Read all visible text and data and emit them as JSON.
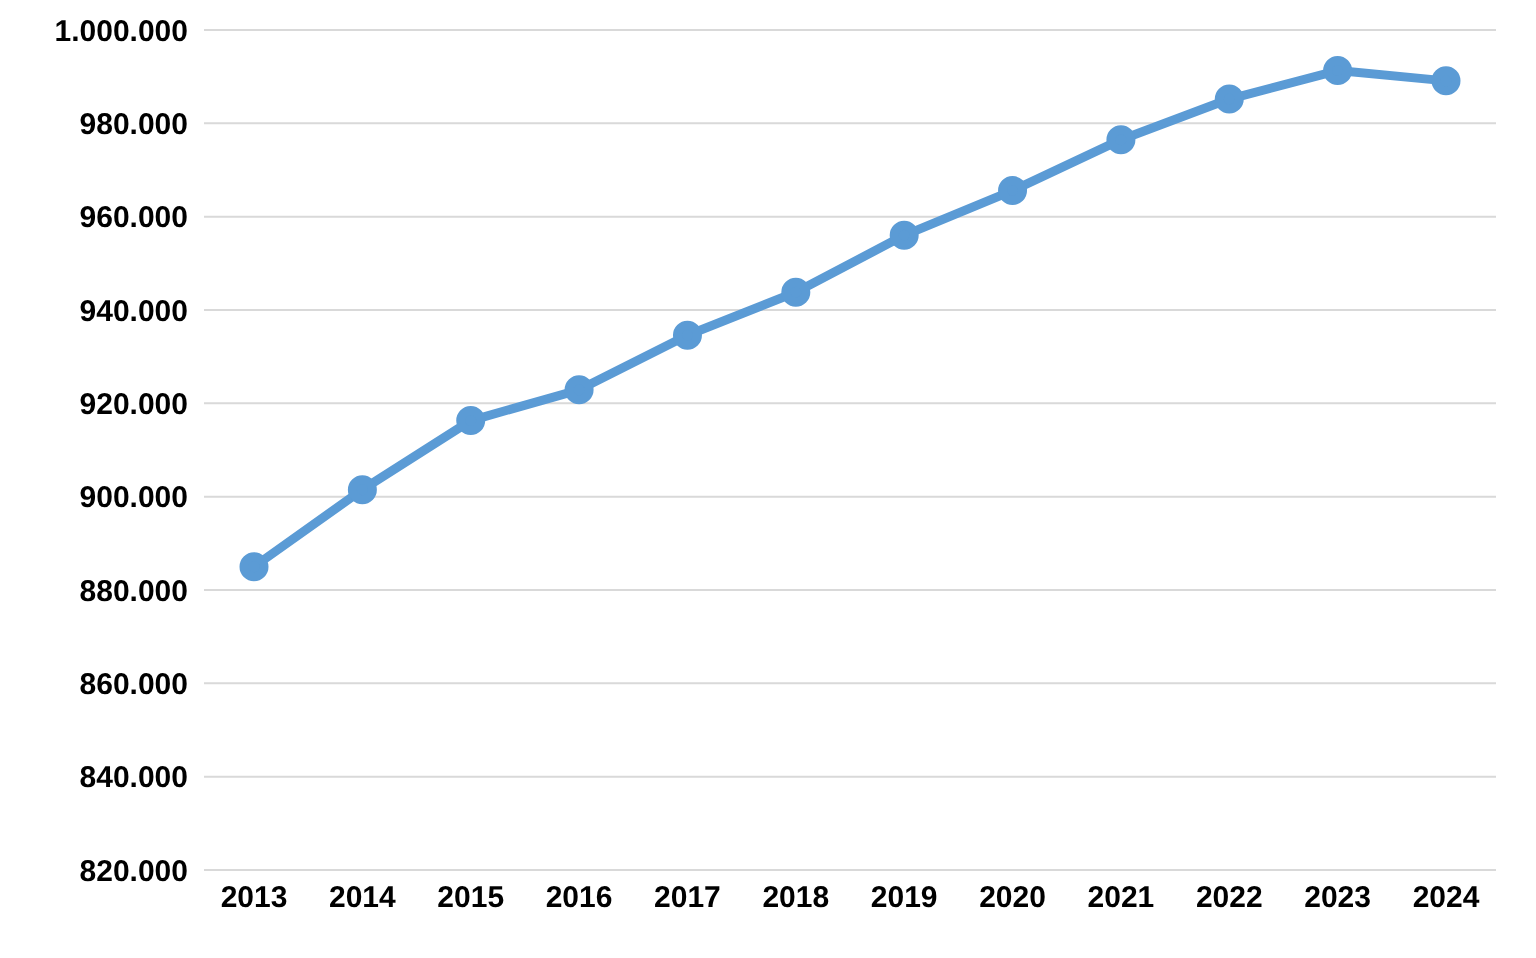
{
  "chart_data": {
    "type": "line",
    "categories": [
      "2013",
      "2014",
      "2015",
      "2016",
      "2017",
      "2018",
      "2019",
      "2020",
      "2021",
      "2022",
      "2023",
      "2024"
    ],
    "series": [
      {
        "color": "#5b9bd5",
        "values": [
          885000,
          901500,
          916300,
          922900,
          934600,
          943800,
          956000,
          965600,
          976500,
          985200,
          991300,
          989100
        ]
      }
    ],
    "ylim": [
      820000,
      1000000
    ],
    "yticks": [
      {
        "value": 820000,
        "label": "820.000"
      },
      {
        "value": 840000,
        "label": "840.000"
      },
      {
        "value": 860000,
        "label": "860.000"
      },
      {
        "value": 880000,
        "label": "880.000"
      },
      {
        "value": 900000,
        "label": "900.000"
      },
      {
        "value": 920000,
        "label": "920.000"
      },
      {
        "value": 940000,
        "label": "940.000"
      },
      {
        "value": 960000,
        "label": "960.000"
      },
      {
        "value": 980000,
        "label": "980.000"
      },
      {
        "value": 1000000,
        "label": "1.000.000"
      }
    ],
    "grid": "y",
    "marker": "circle",
    "line_style": "solid",
    "legend": false
  }
}
